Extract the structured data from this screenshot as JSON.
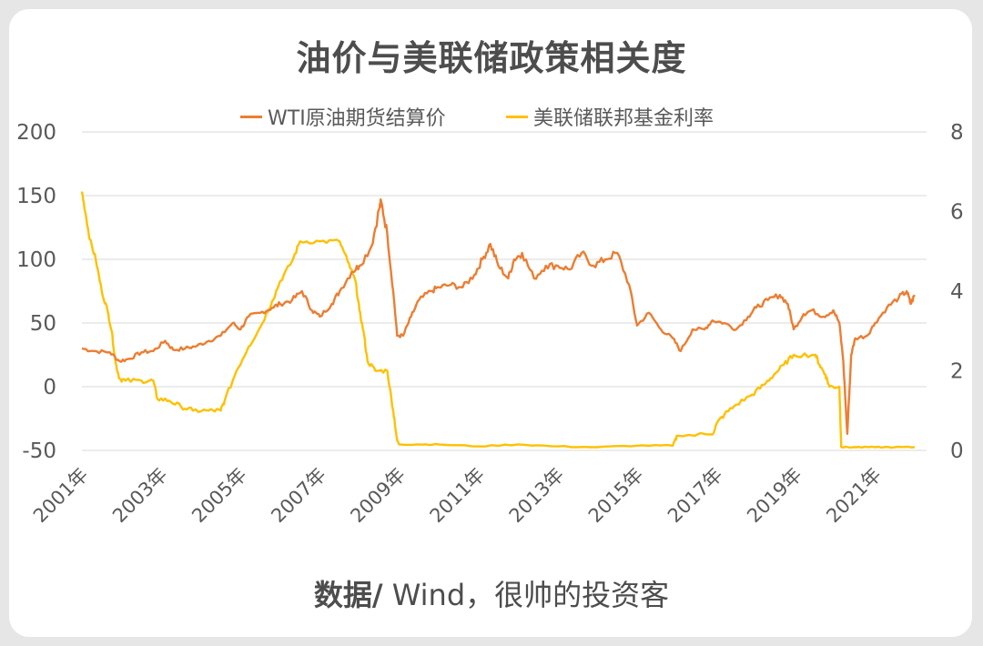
{
  "source": {
    "label": "数据/",
    "text": " Wind，很帅的投资客"
  },
  "chart_data": {
    "type": "line",
    "title": "油价与美联储政策相关度",
    "legend_position": "top",
    "grid": "horizontal",
    "y_left_ticks": [
      "200",
      "150",
      "100",
      "50",
      "0",
      "-50"
    ],
    "y_right_ticks": [
      "8",
      "6",
      "4",
      "2",
      "0"
    ],
    "ylim_left": [
      -50,
      200
    ],
    "ylim_right": [
      0,
      8
    ],
    "xlim": [
      2001,
      2022.3
    ],
    "x_ticks": [
      {
        "year": 2001,
        "label": "2001年"
      },
      {
        "year": 2003,
        "label": "2003年"
      },
      {
        "year": 2005,
        "label": "2005年"
      },
      {
        "year": 2007,
        "label": "2007年"
      },
      {
        "year": 2009,
        "label": "2009年"
      },
      {
        "year": 2011,
        "label": "2011年"
      },
      {
        "year": 2013,
        "label": "2013年"
      },
      {
        "year": 2015,
        "label": "2015年"
      },
      {
        "year": 2017,
        "label": "2017年"
      },
      {
        "year": 2019,
        "label": "2019年"
      },
      {
        "year": 2021,
        "label": "2021年"
      }
    ],
    "series": [
      {
        "name": "WTI原油期货结算价",
        "axis": "left",
        "color": "#ed7d31",
        "points": [
          [
            2001.0,
            30
          ],
          [
            2001.3,
            28
          ],
          [
            2001.7,
            27
          ],
          [
            2001.95,
            20
          ],
          [
            2002.2,
            22
          ],
          [
            2002.5,
            27
          ],
          [
            2002.8,
            28
          ],
          [
            2003.1,
            36
          ],
          [
            2003.3,
            29
          ],
          [
            2003.6,
            30
          ],
          [
            2003.9,
            32
          ],
          [
            2004.2,
            36
          ],
          [
            2004.5,
            40
          ],
          [
            2004.8,
            50
          ],
          [
            2005.0,
            45
          ],
          [
            2005.2,
            55
          ],
          [
            2005.5,
            58
          ],
          [
            2005.8,
            62
          ],
          [
            2006.0,
            65
          ],
          [
            2006.3,
            68
          ],
          [
            2006.55,
            75
          ],
          [
            2006.8,
            60
          ],
          [
            2007.0,
            55
          ],
          [
            2007.3,
            65
          ],
          [
            2007.5,
            75
          ],
          [
            2007.8,
            90
          ],
          [
            2008.0,
            95
          ],
          [
            2008.3,
            110
          ],
          [
            2008.5,
            140
          ],
          [
            2008.55,
            145
          ],
          [
            2008.7,
            120
          ],
          [
            2008.85,
            75
          ],
          [
            2008.95,
            40
          ],
          [
            2009.1,
            40
          ],
          [
            2009.3,
            55
          ],
          [
            2009.5,
            68
          ],
          [
            2009.8,
            75
          ],
          [
            2010.0,
            78
          ],
          [
            2010.3,
            80
          ],
          [
            2010.6,
            78
          ],
          [
            2010.9,
            88
          ],
          [
            2011.1,
            100
          ],
          [
            2011.3,
            112
          ],
          [
            2011.5,
            95
          ],
          [
            2011.75,
            85
          ],
          [
            2011.9,
            100
          ],
          [
            2012.1,
            105
          ],
          [
            2012.4,
            85
          ],
          [
            2012.7,
            95
          ],
          [
            2013.0,
            95
          ],
          [
            2013.3,
            92
          ],
          [
            2013.6,
            105
          ],
          [
            2013.9,
            95
          ],
          [
            2014.2,
            100
          ],
          [
            2014.5,
            105
          ],
          [
            2014.8,
            80
          ],
          [
            2015.0,
            48
          ],
          [
            2015.3,
            58
          ],
          [
            2015.6,
            45
          ],
          [
            2015.9,
            38
          ],
          [
            2016.1,
            28
          ],
          [
            2016.4,
            45
          ],
          [
            2016.7,
            45
          ],
          [
            2016.9,
            52
          ],
          [
            2017.2,
            50
          ],
          [
            2017.5,
            45
          ],
          [
            2017.8,
            55
          ],
          [
            2018.0,
            62
          ],
          [
            2018.3,
            68
          ],
          [
            2018.6,
            72
          ],
          [
            2018.8,
            65
          ],
          [
            2018.95,
            45
          ],
          [
            2019.2,
            57
          ],
          [
            2019.4,
            60
          ],
          [
            2019.7,
            55
          ],
          [
            2019.95,
            60
          ],
          [
            2020.1,
            50
          ],
          [
            2020.2,
            20
          ],
          [
            2020.3,
            -37
          ],
          [
            2020.4,
            25
          ],
          [
            2020.5,
            38
          ],
          [
            2020.8,
            40
          ],
          [
            2021.0,
            50
          ],
          [
            2021.3,
            62
          ],
          [
            2021.6,
            70
          ],
          [
            2021.8,
            75
          ],
          [
            2021.9,
            65
          ],
          [
            2022.0,
            72
          ]
        ]
      },
      {
        "name": "美联储联邦基金利率",
        "axis": "right",
        "color": "#ffc000",
        "points": [
          [
            2001.0,
            6.5
          ],
          [
            2001.1,
            5.9
          ],
          [
            2001.2,
            5.3
          ],
          [
            2001.35,
            4.8
          ],
          [
            2001.5,
            4.0
          ],
          [
            2001.65,
            3.5
          ],
          [
            2001.75,
            3.0
          ],
          [
            2001.85,
            2.2
          ],
          [
            2001.95,
            1.8
          ],
          [
            2002.1,
            1.75
          ],
          [
            2002.5,
            1.75
          ],
          [
            2002.8,
            1.75
          ],
          [
            2002.9,
            1.3
          ],
          [
            2003.2,
            1.25
          ],
          [
            2003.5,
            1.1
          ],
          [
            2003.8,
            1.0
          ],
          [
            2004.2,
            1.0
          ],
          [
            2004.5,
            1.0
          ],
          [
            2004.6,
            1.25
          ],
          [
            2004.9,
            2.0
          ],
          [
            2005.2,
            2.6
          ],
          [
            2005.5,
            3.1
          ],
          [
            2005.8,
            3.75
          ],
          [
            2006.0,
            4.25
          ],
          [
            2006.3,
            4.75
          ],
          [
            2006.5,
            5.25
          ],
          [
            2007.0,
            5.25
          ],
          [
            2007.5,
            5.25
          ],
          [
            2007.7,
            4.75
          ],
          [
            2007.9,
            4.25
          ],
          [
            2008.0,
            3.5
          ],
          [
            2008.1,
            3.0
          ],
          [
            2008.2,
            2.25
          ],
          [
            2008.4,
            2.0
          ],
          [
            2008.7,
            2.0
          ],
          [
            2008.85,
            1.0
          ],
          [
            2008.95,
            0.25
          ],
          [
            2009.0,
            0.15
          ],
          [
            2009.5,
            0.15
          ],
          [
            2010.0,
            0.15
          ],
          [
            2011.0,
            0.1
          ],
          [
            2012.0,
            0.15
          ],
          [
            2013.0,
            0.1
          ],
          [
            2014.0,
            0.08
          ],
          [
            2015.0,
            0.12
          ],
          [
            2015.9,
            0.12
          ],
          [
            2016.0,
            0.37
          ],
          [
            2016.9,
            0.4
          ],
          [
            2017.0,
            0.66
          ],
          [
            2017.2,
            0.9
          ],
          [
            2017.5,
            1.15
          ],
          [
            2017.9,
            1.4
          ],
          [
            2018.2,
            1.65
          ],
          [
            2018.45,
            1.9
          ],
          [
            2018.7,
            2.15
          ],
          [
            2018.95,
            2.4
          ],
          [
            2019.5,
            2.4
          ],
          [
            2019.6,
            2.15
          ],
          [
            2019.75,
            1.9
          ],
          [
            2019.85,
            1.6
          ],
          [
            2020.1,
            1.6
          ],
          [
            2020.15,
            0.08
          ],
          [
            2020.5,
            0.08
          ],
          [
            2021.0,
            0.08
          ],
          [
            2021.5,
            0.08
          ],
          [
            2022.0,
            0.08
          ]
        ]
      }
    ]
  }
}
